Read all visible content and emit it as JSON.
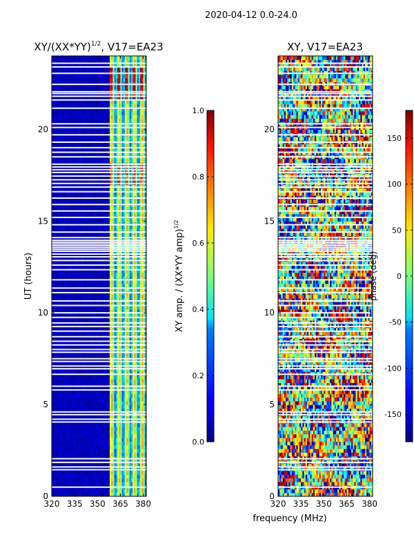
{
  "suptitle": "2020-04-12 0.0-24.0",
  "shared_xlabel": "frequency (MHz)",
  "chart_data": [
    {
      "type": "heatmap",
      "title": "XY/(XX*YY)^{1/2}, V17=EA23",
      "title_main": "XY/(XX*YY)",
      "title_sup": "1/2",
      "title_tail": ", V17=EA23",
      "xlabel": "frequency (MHz)",
      "ylabel": "UT (hours)",
      "xlim": [
        320,
        382
      ],
      "ylim": [
        0,
        24
      ],
      "xticks": [
        320,
        335,
        350,
        365,
        380
      ],
      "yticks": [
        0,
        5,
        10,
        15,
        20
      ],
      "colormap": "jet",
      "colorbar": {
        "label": "XY amp. / (XX*YY amp)^{1/2}",
        "label_main": "XY amp. / (XX*YY amp)",
        "label_sup": "1/2",
        "range": [
          0.0,
          1.0
        ],
        "ticks": [
          "0.0",
          "0.2",
          "0.4",
          "0.6",
          "0.8",
          "1.0"
        ]
      },
      "notes": "Mostly low amplitude (~0.05) below 360 MHz; bright vertical bands 360-382 MHz with values 0.4-1.0."
    },
    {
      "type": "heatmap",
      "title": "XY, V17=EA23",
      "xlabel": "frequency (MHz)",
      "ylabel": "",
      "xlim": [
        320,
        382
      ],
      "ylim": [
        0,
        24
      ],
      "xticks": [
        320,
        335,
        350,
        365,
        380
      ],
      "yticks": [
        0,
        5,
        10,
        15,
        20
      ],
      "colormap": "jet",
      "colorbar": {
        "label": "phase (deg)",
        "range": [
          -180,
          180
        ],
        "ticks": [
          "-150",
          "-100",
          "-50",
          "0",
          "50",
          "100",
          "150"
        ]
      },
      "notes": "Phase noise spanning full -180 to 180 deg range across all frequencies and times."
    }
  ],
  "flagged_rows_ut": [
    0.5,
    1.45,
    1.6,
    1.85,
    2.05,
    4.05,
    4.2,
    4.45,
    4.6,
    5.8,
    6.0,
    6.65,
    6.95,
    7.1,
    7.35,
    7.5,
    7.85,
    8.0,
    8.25,
    8.45,
    8.7,
    9.0,
    9.25,
    9.45,
    9.75,
    10.0,
    10.4,
    10.65,
    11.1,
    11.35,
    11.8,
    12.35,
    12.6,
    12.85,
    13.05,
    13.2,
    13.35,
    13.45,
    13.55,
    13.65,
    13.75,
    13.85,
    13.95,
    14.1,
    14.4,
    14.8,
    15.2,
    15.55,
    15.9,
    16.25,
    16.6,
    16.85,
    17.05,
    17.25,
    17.45,
    17.65,
    17.8,
    17.95,
    18.1,
    18.5,
    18.75,
    19.0,
    19.3,
    19.7,
    20.1,
    20.3,
    21.15,
    21.6,
    21.8,
    21.95,
    22.05,
    22.45,
    23.05,
    23.4,
    23.6
  ]
}
